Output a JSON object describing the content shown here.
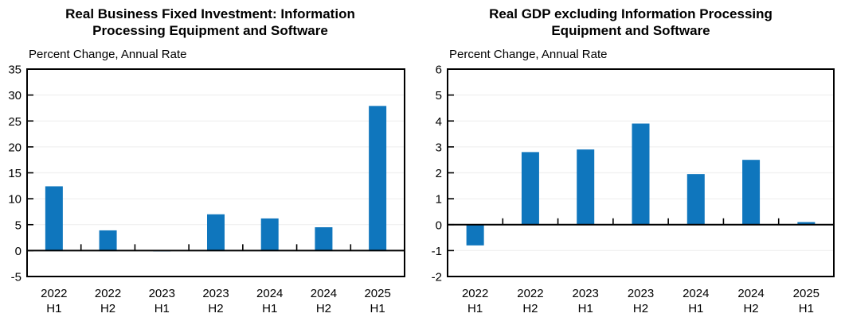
{
  "page": {
    "background": "#ffffff"
  },
  "chart_data": [
    {
      "type": "bar",
      "title": "Real Business Fixed Investment: Information Processing Equipment and Software",
      "title_lines": [
        "Real Business Fixed Investment: Information",
        "Processing Equipment and Software"
      ],
      "subtitle": "Percent Change, Annual Rate",
      "categories": [
        "2022 H1",
        "2022 H2",
        "2023 H1",
        "2023 H2",
        "2024 H1",
        "2024 H2",
        "2025 H1"
      ],
      "values": [
        12.4,
        3.9,
        -0.1,
        7.0,
        6.2,
        4.5,
        27.9
      ],
      "ylim": [
        -5,
        35
      ],
      "ytick_step": 5,
      "yticks": [
        -5,
        0,
        5,
        10,
        15,
        20,
        25,
        30,
        35
      ],
      "xlabel": "",
      "ylabel": "Percent Change, Annual Rate",
      "grid": true,
      "legend": "none",
      "bar_color": "#0F76BD",
      "gridline_color": "#f0f0f0",
      "axis_color": "#000000"
    },
    {
      "type": "bar",
      "title": "Real GDP excluding Information Processing Equipment and Software",
      "title_lines": [
        "Real GDP excluding Information Processing",
        "Equipment and Software"
      ],
      "subtitle": "Percent Change, Annual Rate",
      "categories": [
        "2022 H1",
        "2022 H2",
        "2023 H1",
        "2023 H2",
        "2024 H1",
        "2024 H2",
        "2025 H1"
      ],
      "values": [
        -0.8,
        2.8,
        2.9,
        3.9,
        1.95,
        2.5,
        0.1
      ],
      "ylim": [
        -2,
        6
      ],
      "ytick_step": 1,
      "yticks": [
        -2,
        -1,
        0,
        1,
        2,
        3,
        4,
        5,
        6
      ],
      "xlabel": "",
      "ylabel": "Percent Change, Annual Rate",
      "grid": true,
      "legend": "none",
      "bar_color": "#0F76BD",
      "gridline_color": "#f0f0f0",
      "axis_color": "#000000"
    }
  ]
}
